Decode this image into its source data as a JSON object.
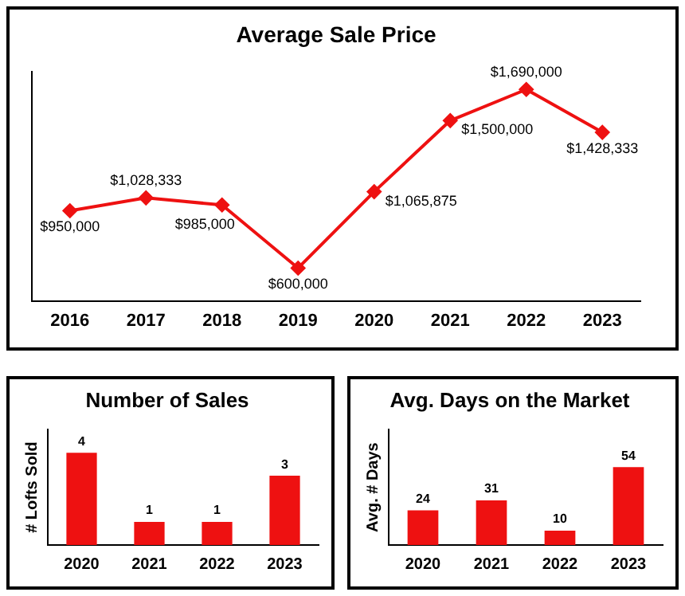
{
  "chart_data": [
    {
      "type": "line",
      "title": "Average Sale Price",
      "categories": [
        "2016",
        "2017",
        "2018",
        "2019",
        "2020",
        "2021",
        "2022",
        "2023"
      ],
      "series": [
        {
          "color": "#ee1111",
          "values": [
            950000,
            1028333,
            985000,
            600000,
            1065875,
            1500000,
            1690000,
            1428333
          ],
          "value_labels": [
            "$950,000",
            "$1,028,333",
            "$985,000",
            "$600,000",
            "$1,065,875",
            "$1,500,000",
            "$1,690,000",
            "$1,428,333"
          ]
        }
      ],
      "marker": "diamond",
      "grid": false,
      "tick_labels": "x"
    },
    {
      "type": "bar",
      "title": "Number of Sales",
      "ylabel": "# Lofts Sold",
      "categories": [
        "2020",
        "2021",
        "2022",
        "2023"
      ],
      "series": [
        {
          "color": "#ee1111",
          "values": [
            4,
            1,
            1,
            3
          ]
        }
      ],
      "data_labels": true,
      "grid": false,
      "tick_labels": "x"
    },
    {
      "type": "bar",
      "title": "Avg. Days on the Market",
      "ylabel": "Avg. # Days",
      "categories": [
        "2020",
        "2021",
        "2022",
        "2023"
      ],
      "series": [
        {
          "color": "#ee1111",
          "values": [
            24,
            31,
            10,
            54
          ]
        }
      ],
      "data_labels": true,
      "grid": false,
      "tick_labels": "x"
    }
  ]
}
